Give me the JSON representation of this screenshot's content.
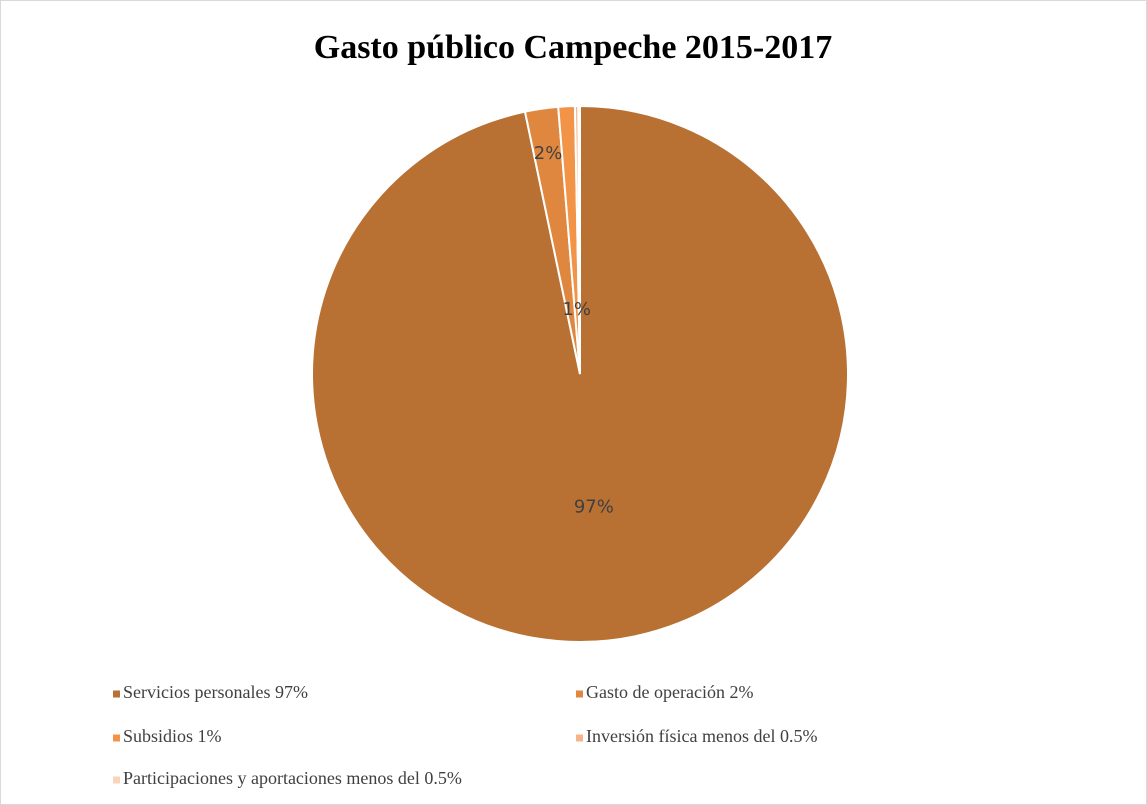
{
  "chart_data": {
    "type": "pie",
    "title": "Gasto público Campeche 2015-2017",
    "categories": [
      "Servicios personales 97%",
      "Gasto de operación 2%",
      "Subsidios 1%",
      "Inversión física  menos del 0.5%",
      "Participaciones y aportaciones menos del 0.5%"
    ],
    "values": [
      97,
      2,
      1,
      0.2,
      0.1
    ],
    "value_labels": [
      "97%",
      "2%",
      "1%",
      null,
      null
    ],
    "colors": [
      "#b87033",
      "#e0873f",
      "#f29447",
      "#f7b48a",
      "#fad3bc"
    ]
  }
}
